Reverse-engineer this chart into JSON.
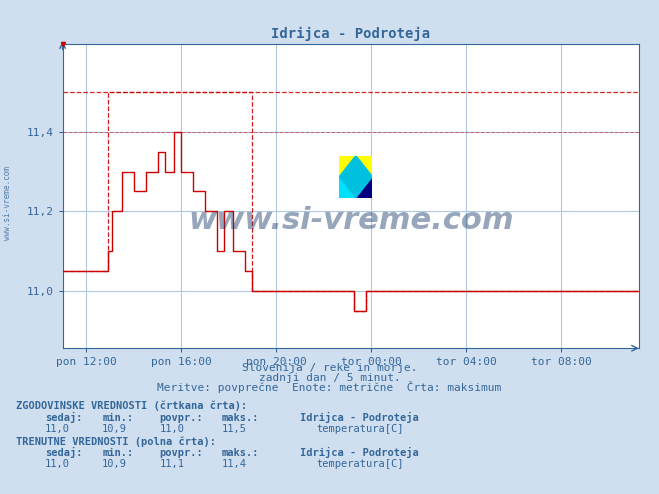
{
  "title": "Idrijca - Podroteja",
  "bg_color": "#d0dff0",
  "plot_bg_color": "#ffffff",
  "grid_color": "#b0c8e0",
  "line_color": "#cc0000",
  "axis_color": "#336699",
  "text_color": "#336699",
  "xlim": [
    11,
    35.3
  ],
  "ylim_min": 10.855,
  "ylim_max": 11.62,
  "yticks": [
    11.0,
    11.2,
    11.4
  ],
  "ytick_labels": [
    "11,0",
    "11,2",
    "11,4"
  ],
  "xtick_labels": [
    "pon 12:00",
    "pon 16:00",
    "pon 20:00",
    "tor 00:00",
    "tor 04:00",
    "tor 08:00"
  ],
  "xtick_positions": [
    12,
    16,
    20,
    24,
    28,
    32
  ],
  "watermark": "www.si-vreme.com",
  "subtitle1": "Slovenija / reke in morje.",
  "subtitle2": "zadnji dan / 5 minut.",
  "subtitle3": "Meritve: povprečne  Enote: metrične  Črta: maksimum",
  "legend_hist_label": "ZGODOVINSKE VREDNOSTI (črtkana črta):",
  "legend_curr_label": "TRENUTNE VREDNOSTI (polna črta):",
  "hist_sedaj": "11,0",
  "hist_min": "10,9",
  "hist_povpr": "11,0",
  "hist_maks": "11,5",
  "curr_sedaj": "11,0",
  "curr_min": "10,9",
  "curr_povpr": "11,1",
  "curr_maks": "11,4",
  "station_name": "Idrijca - Podroteja",
  "param_name": "temperatura[C]",
  "solid_x": [
    11.0,
    12.9,
    12.9,
    13.1,
    13.1,
    13.5,
    13.5,
    14.0,
    14.0,
    14.5,
    14.5,
    15.0,
    15.0,
    15.3,
    15.3,
    15.7,
    15.7,
    16.0,
    16.0,
    16.5,
    16.5,
    17.0,
    17.0,
    17.5,
    17.5,
    17.8,
    17.8,
    18.2,
    18.2,
    18.7,
    18.7,
    19.0,
    19.0,
    19.5,
    19.5,
    20.0,
    20.0,
    23.3,
    23.3,
    23.8,
    23.8,
    24.3,
    24.3,
    25.0,
    25.0,
    34.2,
    34.2,
    35.3
  ],
  "solid_y": [
    11.05,
    11.05,
    11.1,
    11.1,
    11.2,
    11.2,
    11.3,
    11.3,
    11.25,
    11.25,
    11.3,
    11.3,
    11.35,
    11.35,
    11.3,
    11.3,
    11.4,
    11.4,
    11.3,
    11.3,
    11.25,
    11.25,
    11.2,
    11.2,
    11.1,
    11.1,
    11.2,
    11.2,
    11.1,
    11.1,
    11.05,
    11.05,
    11.0,
    11.0,
    11.0,
    11.0,
    11.0,
    11.0,
    10.95,
    10.95,
    11.0,
    11.0,
    11.0,
    11.0,
    11.0,
    11.0,
    11.0,
    11.0
  ],
  "dashed_x": [
    11.0,
    12.9,
    12.9,
    13.1,
    13.1,
    19.0,
    19.0,
    19.5,
    19.5,
    20.0,
    20.0,
    23.3,
    23.3,
    23.8,
    23.8,
    24.3,
    24.3,
    25.0,
    25.0,
    34.2,
    34.2,
    35.3
  ],
  "dashed_y": [
    11.05,
    11.05,
    11.5,
    11.5,
    11.5,
    11.5,
    11.0,
    11.0,
    11.0,
    11.0,
    11.0,
    11.0,
    10.95,
    10.95,
    11.0,
    11.0,
    11.0,
    11.0,
    11.0,
    11.0,
    11.0,
    11.0
  ],
  "hline_dashed_y": 11.5,
  "hline_solid_y": 11.4
}
